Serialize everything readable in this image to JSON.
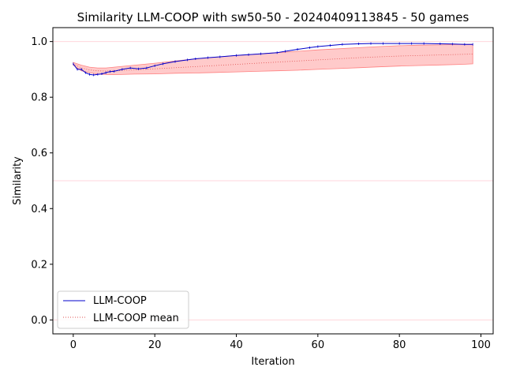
{
  "chart_data": {
    "type": "line",
    "title": "Similarity LLM-COOP with sw50-50 - 20240409113845 - 50 games",
    "xlabel": "Iteration",
    "ylabel": "Similarity",
    "xlim": [
      -5,
      103
    ],
    "ylim": [
      -0.05,
      1.05
    ],
    "xticks": [
      0,
      20,
      40,
      60,
      80,
      100
    ],
    "yticks": [
      0.0,
      0.2,
      0.4,
      0.6,
      0.8,
      1.0
    ],
    "xtick_labels": [
      "0",
      "20",
      "40",
      "60",
      "80",
      "100"
    ],
    "ytick_labels": [
      "0.0",
      "0.2",
      "0.4",
      "0.6",
      "0.8",
      "1.0"
    ],
    "reference_lines": [
      1.0,
      0.5,
      0.0
    ],
    "legend_position": "lower-left",
    "colors": {
      "series_main": "#0000cc",
      "series_mean": "#e05050",
      "band_fill": "#ffb3b3",
      "band_edge": "#ff8080",
      "reference": "#ffd6dc"
    },
    "series": [
      {
        "name": "LLM-COOP",
        "x": [
          0,
          1,
          2,
          3,
          4,
          5,
          6,
          7,
          8,
          9,
          10,
          12,
          14,
          16,
          18,
          20,
          22,
          25,
          28,
          30,
          33,
          36,
          40,
          43,
          46,
          50,
          52,
          55,
          58,
          60,
          63,
          66,
          70,
          73,
          76,
          80,
          83,
          86,
          90,
          93,
          96,
          98
        ],
        "values": [
          0.92,
          0.9,
          0.9,
          0.888,
          0.882,
          0.88,
          0.882,
          0.884,
          0.888,
          0.892,
          0.893,
          0.9,
          0.905,
          0.902,
          0.905,
          0.913,
          0.92,
          0.928,
          0.934,
          0.938,
          0.942,
          0.945,
          0.95,
          0.953,
          0.956,
          0.96,
          0.965,
          0.972,
          0.978,
          0.982,
          0.986,
          0.99,
          0.992,
          0.993,
          0.993,
          0.993,
          0.993,
          0.993,
          0.992,
          0.991,
          0.99,
          0.99
        ]
      },
      {
        "name": "LLM-COOP mean",
        "x": [
          0,
          2,
          4,
          6,
          8,
          10,
          15,
          20,
          25,
          30,
          35,
          40,
          45,
          50,
          55,
          60,
          65,
          70,
          75,
          80,
          85,
          90,
          95,
          98
        ],
        "values": [
          0.92,
          0.905,
          0.898,
          0.895,
          0.894,
          0.895,
          0.898,
          0.902,
          0.906,
          0.91,
          0.914,
          0.918,
          0.922,
          0.926,
          0.93,
          0.934,
          0.938,
          0.942,
          0.945,
          0.948,
          0.95,
          0.952,
          0.954,
          0.955
        ],
        "band_upper": [
          0.925,
          0.915,
          0.908,
          0.905,
          0.905,
          0.908,
          0.915,
          0.922,
          0.93,
          0.938,
          0.944,
          0.95,
          0.955,
          0.96,
          0.965,
          0.97,
          0.974,
          0.978,
          0.982,
          0.985,
          0.987,
          0.988,
          0.99,
          0.99
        ],
        "band_lower": [
          0.915,
          0.895,
          0.888,
          0.883,
          0.882,
          0.881,
          0.883,
          0.884,
          0.886,
          0.887,
          0.889,
          0.891,
          0.893,
          0.895,
          0.897,
          0.9,
          0.903,
          0.906,
          0.909,
          0.912,
          0.914,
          0.916,
          0.918,
          0.92
        ]
      }
    ]
  }
}
